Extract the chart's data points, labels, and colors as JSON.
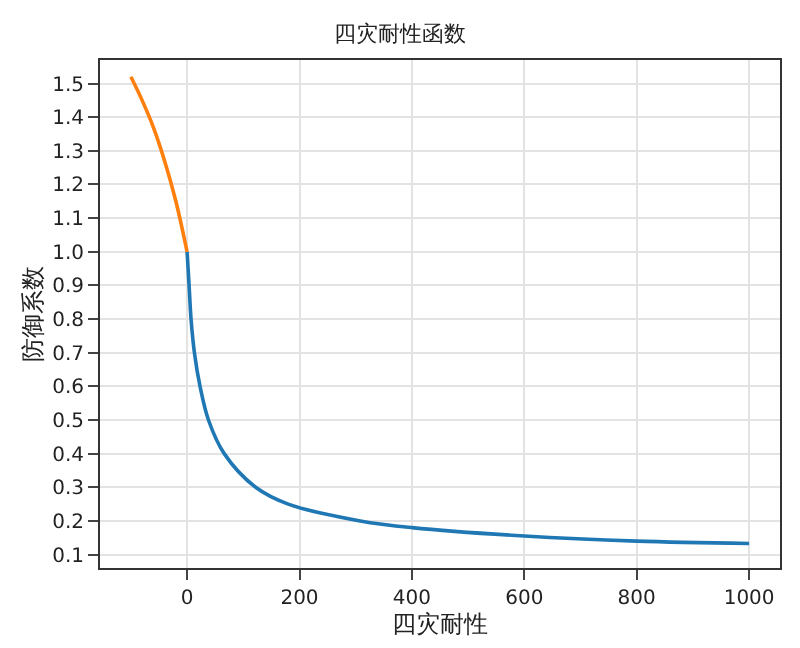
{
  "chart_data": {
    "type": "line",
    "title": "四灾耐性函数",
    "xlabel": "四灾耐性",
    "ylabel": "防御系数",
    "series": [
      {
        "color": "#1f77b4",
        "x": [
          0,
          3.5,
          7,
          13,
          23,
          38,
          66,
          122,
          180,
          308,
          400,
          600,
          800,
          1000
        ],
        "values": [
          1.0,
          0.9,
          0.8,
          0.7,
          0.6,
          0.5,
          0.4,
          0.3,
          0.25,
          0.2,
          0.18,
          0.155,
          0.14,
          0.133
        ]
      },
      {
        "color": "#ff7f0e",
        "x": [
          -100,
          -80,
          -60,
          -40,
          -20,
          0
        ],
        "values": [
          1.52,
          1.45,
          1.37,
          1.27,
          1.15,
          1.0
        ]
      }
    ],
    "xlim": [
      -155,
      1055
    ],
    "xticks": [
      0,
      200,
      400,
      600,
      800,
      1000
    ],
    "ylim": [
      0.06,
      1.57
    ],
    "yticks": [
      0.1,
      0.2,
      0.3,
      0.4,
      0.5,
      0.6,
      0.7,
      0.8,
      0.9,
      {
        "value": 1,
        "label": "1.0"
      },
      1.1,
      1.2,
      1.3,
      1.4,
      1.5
    ],
    "grid": true,
    "legend": false
  }
}
